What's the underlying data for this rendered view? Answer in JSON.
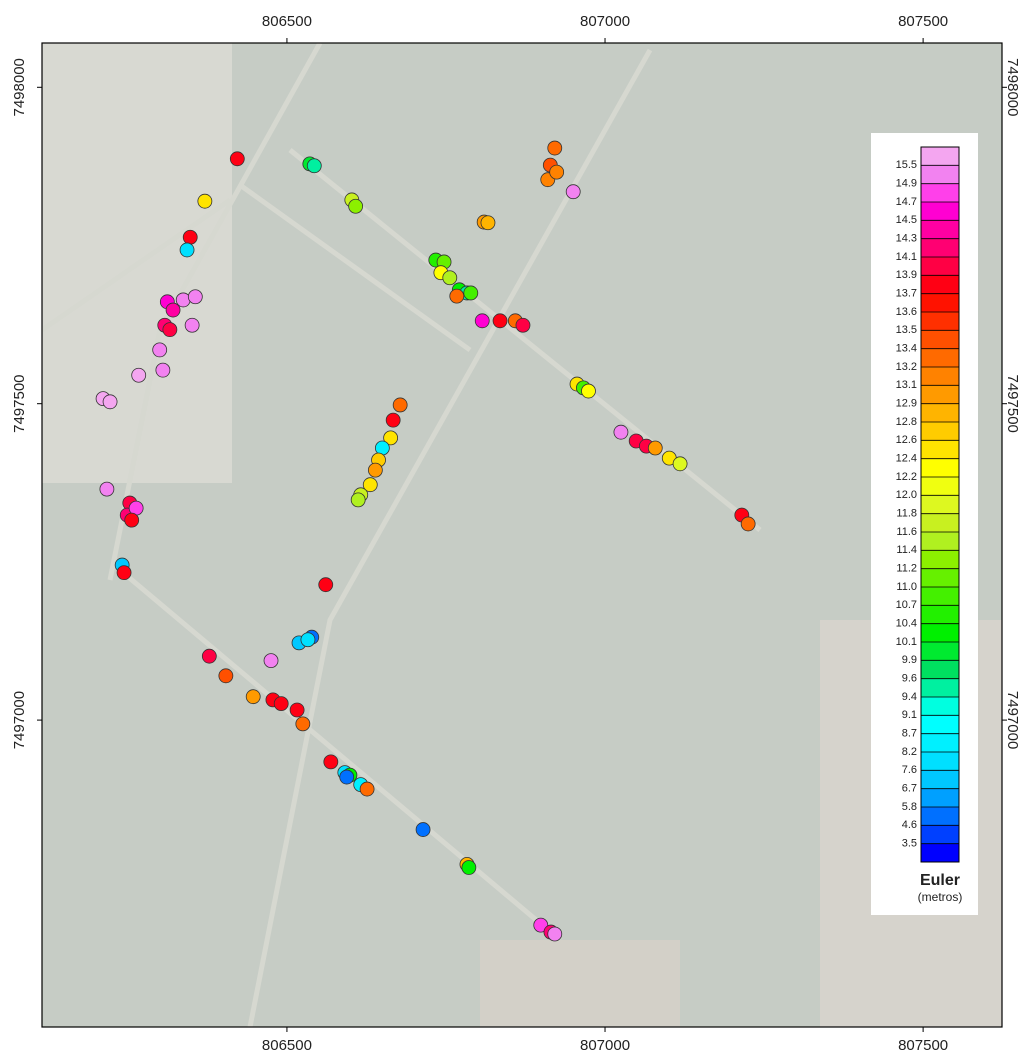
{
  "chart_data": {
    "type": "scatter",
    "xlim": [
      806115,
      807624
    ],
    "ylim": [
      7496515,
      7498070
    ],
    "xticks": [
      806500,
      807000,
      807500
    ],
    "yticks": [
      7497000,
      7497500,
      7498000
    ],
    "colorbar_title": "Euler",
    "colorbar_unit": "(metros)",
    "colorbar": {
      "levels": [
        15.5,
        14.9,
        14.7,
        14.5,
        14.3,
        14.1,
        13.9,
        13.7,
        13.6,
        13.5,
        13.4,
        13.2,
        13.1,
        12.9,
        12.8,
        12.6,
        12.4,
        12.2,
        {
          "value": 12,
          "label": "12.0"
        },
        11.8,
        11.6,
        11.4,
        11.2,
        {
          "value": 11,
          "label": "11.0"
        },
        10.7,
        10.4,
        10.1,
        9.9,
        9.6,
        9.4,
        9.1,
        8.7,
        8.2,
        7.6,
        6.7,
        5.8,
        4.6,
        3.5
      ],
      "colors": [
        "#f4a6f0",
        "#f282f0",
        "#ff40ea",
        "#ff00d2",
        "#ff00a2",
        "#ff0072",
        "#ff0044",
        "#ff0014",
        "#ff1200",
        "#ff3000",
        "#ff5000",
        "#ff6a00",
        "#ff8200",
        "#ff9a00",
        "#ffb400",
        "#ffcc00",
        "#ffe400",
        "#ffff00",
        "#f0ff10",
        "#ddf820",
        "#c8f020",
        "#b0f020",
        "#8cf000",
        "#66f000",
        "#44f000",
        "#22f000",
        "#00f000",
        "#00ea30",
        "#00e060",
        "#00f0a0",
        "#00ffe0",
        "#00ffff",
        "#00f0ff",
        "#00e0ff",
        "#00c8ff",
        "#00a0ff",
        "#0070ff",
        "#0040ff",
        "#0000ff"
      ]
    },
    "x": [
      806422,
      806536,
      806543,
      806371,
      806348,
      806343,
      806602,
      806608,
      806810,
      806816,
      806921,
      806914,
      806910,
      806924,
      806950,
      806312,
      806321,
      806308,
      806316,
      806337,
      806356,
      806351,
      806300,
      806305,
      806267,
      806211,
      806222,
      806217,
      806253,
      806249,
      806263,
      806256,
      806241,
      806244,
      806734,
      806747,
      806742,
      806756,
      806771,
      806783,
      806789,
      806767,
      806807,
      806835,
      806859,
      806871,
      806956,
      806966,
      806974,
      807025,
      807049,
      807065,
      807079,
      807101,
      807118,
      807215,
      807225,
      806678,
      806667,
      806663,
      806650,
      806644,
      806639,
      806631,
      806616,
      806612,
      806561,
      806519,
      806539,
      806533,
      806378,
      806404,
      806475,
      806447,
      806478,
      806491,
      806516,
      806525,
      806569,
      806591,
      806599,
      806594,
      806616,
      806626,
      806714,
      806783,
      806786,
      806899,
      806915,
      806921
    ],
    "y": [
      7497887,
      7497879,
      7497876,
      7497820,
      7497763,
      7497743,
      7497822,
      7497812,
      7497787,
      7497786,
      7497904,
      7497877,
      7497854,
      7497866,
      7497835,
      7497661,
      7497648,
      7497624,
      7497617,
      7497664,
      7497669,
      7497624,
      7497585,
      7497553,
      7497545,
      7497508,
      7497503,
      7497365,
      7497343,
      7497324,
      7497335,
      7497316,
      7497245,
      7497233,
      7497727,
      7497724,
      7497707,
      7497699,
      7497680,
      7497675,
      7497675,
      7497670,
      7497631,
      7497631,
      7497631,
      7497624,
      7497531,
      7497525,
      7497520,
      7497455,
      7497441,
      7497433,
      7497430,
      7497414,
      7497405,
      7497324,
      7497310,
      7497498,
      7497474,
      7497446,
      7497430,
      7497411,
      7497395,
      7497372,
      7497356,
      7497348,
      7497214,
      7497122,
      7497131,
      7497127,
      7497101,
      7497070,
      7497094,
      7497037,
      7497032,
      7497026,
      7497016,
      7496994,
      7496934,
      7496917,
      7496913,
      7496910,
      7496898,
      7496891,
      7496827,
      7496772,
      7496767,
      7496676,
      7496665,
      7496662
    ],
    "depth": [
      13.8,
      10.0,
      9.5,
      12.4,
      13.7,
      7.6,
      11.6,
      11.2,
      12.9,
      12.8,
      13.2,
      13.4,
      13.1,
      13.1,
      15.2,
      14.6,
      14.4,
      14.2,
      14.0,
      15.2,
      15.4,
      15.3,
      15.2,
      15.3,
      15.6,
      15.6,
      15.6,
      15.4,
      14.0,
      14.1,
      14.8,
      13.7,
      7.0,
      13.7,
      10.6,
      11.0,
      12.2,
      11.4,
      10.2,
      9.5,
      10.8,
      13.2,
      14.6,
      13.8,
      13.3,
      13.9,
      12.5,
      10.8,
      12.3,
      15.4,
      14.0,
      14.0,
      13.0,
      12.4,
      11.8,
      13.8,
      13.3,
      13.2,
      13.8,
      12.5,
      8.5,
      12.6,
      13.0,
      12.4,
      11.7,
      11.4,
      13.8,
      7.3,
      4.9,
      8.0,
      14.0,
      13.4,
      15.4,
      12.9,
      13.8,
      13.8,
      13.8,
      13.3,
      13.8,
      7.8,
      10.3,
      4.6,
      8.5,
      13.3,
      4.8,
      12.8,
      10.2,
      14.7,
      14.1,
      15.4
    ]
  }
}
